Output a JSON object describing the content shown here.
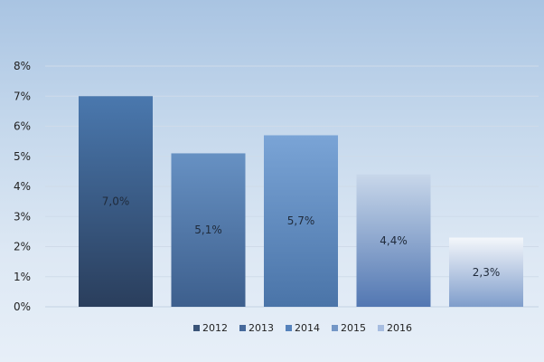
{
  "chart_data": {
    "type": "bar",
    "categories": [
      "2012",
      "2013",
      "2014",
      "2015",
      "2016"
    ],
    "values": [
      7.0,
      5.1,
      5.7,
      4.4,
      2.3
    ],
    "data_labels": [
      "7,0%",
      "5,1%",
      "5,7%",
      "4,4%",
      "2,3%"
    ],
    "y_ticks": [
      0,
      1,
      2,
      3,
      4,
      5,
      6,
      7,
      8
    ],
    "y_tick_labels": [
      "0%",
      "1%",
      "2%",
      "3%",
      "4%",
      "5%",
      "6%",
      "7%",
      "8%"
    ],
    "ylim": [
      0,
      8
    ],
    "grid": true,
    "legend": {
      "position": "bottom",
      "entries": [
        "2012",
        "2013",
        "2014",
        "2015",
        "2016"
      ]
    },
    "title": "",
    "xlabel": "",
    "ylabel": "",
    "colors": [
      {
        "top": "#4a78ae",
        "bottom": "#2a3e5c",
        "legend": "#3a5478"
      },
      {
        "top": "#6791c3",
        "bottom": "#3d5f8d",
        "legend": "#46699b"
      },
      {
        "top": "#7aa4d6",
        "bottom": "#4a74a8",
        "legend": "#5582bb"
      },
      {
        "top": "#c8d7ea",
        "bottom": "#5277b2",
        "legend": "#7497c6"
      },
      {
        "top": "#f4f7fb",
        "bottom": "#7f9dcb",
        "legend": "#a7bde0"
      }
    ]
  }
}
